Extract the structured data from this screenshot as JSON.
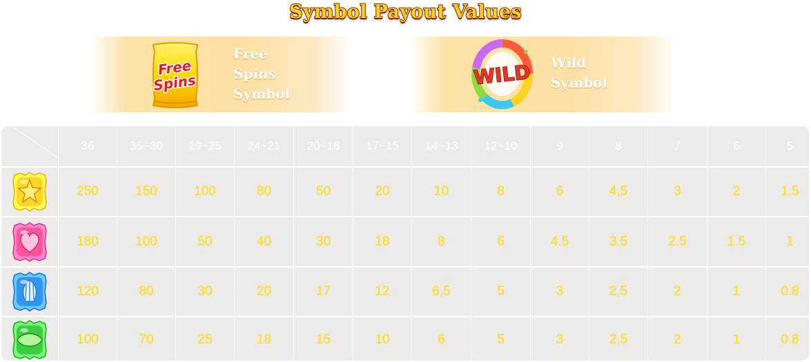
{
  "title": "Symbol Payout Values",
  "special_symbols": [
    {
      "icon": "free-spins-icon",
      "icon_text": [
        "Free",
        "Spins"
      ],
      "label_lines": [
        "Free",
        "Spins",
        "Symbol"
      ]
    },
    {
      "icon": "wild-icon",
      "icon_text": "WILD",
      "label_lines": [
        "Wild",
        "Symbol"
      ]
    }
  ],
  "payout_table": {
    "headers": [
      "36",
      "35~30",
      "29~25",
      "24~21",
      "20~18",
      "17~15",
      "14~13",
      "12~10",
      "9",
      "8",
      "7",
      "6",
      "5"
    ],
    "rows": [
      {
        "symbol": "yellow-star-candy-icon",
        "color": "#ffd21e",
        "values": [
          "250",
          "150",
          "100",
          "80",
          "50",
          "20",
          "10",
          "8",
          "6",
          "4,5",
          "3",
          "2",
          "1.5"
        ]
      },
      {
        "symbol": "pink-heart-candy-icon",
        "color": "#ff4e95",
        "values": [
          "180",
          "100",
          "50",
          "40",
          "30",
          "18",
          "8",
          "6",
          "4.5",
          "3.5",
          "2.5",
          "1.5",
          "1"
        ]
      },
      {
        "symbol": "blue-striped-candy-icon",
        "color": "#2f8ff0",
        "values": [
          "120",
          "80",
          "30",
          "20",
          "17",
          "12",
          "6,5",
          "5",
          "3",
          "2,5",
          "2",
          "1",
          "0.8"
        ]
      },
      {
        "symbol": "green-candy-icon",
        "color": "#37c83c",
        "values": [
          "100",
          "70",
          "25",
          "18",
          "15",
          "10",
          "6",
          "5",
          "3",
          "2,5",
          "2",
          "1",
          "0.8"
        ]
      }
    ]
  },
  "colors": {
    "value_text": "#ffe10f",
    "header_text": "#ffffff",
    "title_fill": "#ffce22",
    "title_outline": "#8a2d10",
    "cell_bg": "#ecebea"
  }
}
